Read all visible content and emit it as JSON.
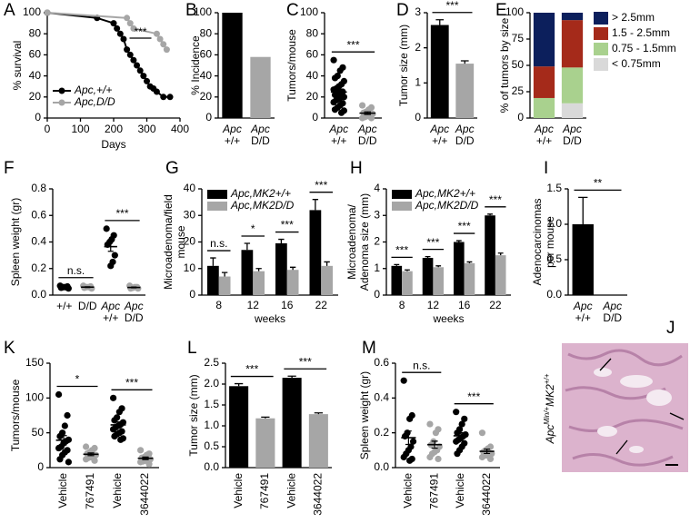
{
  "chart_data": [
    {
      "panel": "A",
      "type": "line",
      "ylabel": "% survival",
      "xlabel": "Days",
      "xlim": [
        0,
        400
      ],
      "xticks": [
        0,
        100,
        200,
        300,
        400
      ],
      "ylim": [
        0,
        100
      ],
      "yticks": [
        0,
        20,
        40,
        60,
        80,
        100
      ],
      "legend": "lower left",
      "series": [
        {
          "name": "Apc,+/+",
          "color": "#000000",
          "x": [
            0,
            150,
            200,
            210,
            220,
            230,
            240,
            250,
            260,
            270,
            280,
            290,
            300,
            310,
            320,
            330,
            350,
            370
          ],
          "y": [
            100,
            95,
            90,
            85,
            80,
            75,
            65,
            60,
            55,
            50,
            45,
            40,
            35,
            30,
            28,
            25,
            20,
            20
          ]
        },
        {
          "name": "Apc,D/D",
          "color": "#a6a6a6",
          "x": [
            0,
            240,
            250,
            260,
            330,
            340,
            350,
            360
          ],
          "y": [
            100,
            95,
            90,
            85,
            80,
            75,
            70,
            65
          ]
        }
      ],
      "annotations": [
        {
          "text": "***"
        }
      ]
    },
    {
      "panel": "B",
      "type": "bar",
      "ylabel": "% Incidence",
      "ylim": [
        0,
        100
      ],
      "yticks": [
        0,
        20,
        40,
        60,
        80,
        100
      ],
      "categories": [
        [
          "Apc",
          "+/+"
        ],
        [
          "Apc",
          "D/D"
        ]
      ],
      "values": [
        100,
        58
      ],
      "colors": [
        "#000000",
        "#a6a6a6"
      ]
    },
    {
      "panel": "C",
      "type": "strip",
      "ylabel": "Tumors/mouse",
      "ylim": [
        0,
        100
      ],
      "yticks": [
        0,
        20,
        40,
        60,
        80,
        100
      ],
      "categories": [
        [
          "Apc",
          "+/+"
        ],
        [
          "Apc",
          "D/D"
        ]
      ],
      "groups": [
        {
          "color": "#000000",
          "points": [
            55,
            48,
            45,
            40,
            38,
            35,
            32,
            30,
            28,
            27,
            25,
            24,
            22,
            22,
            20,
            20,
            18,
            17,
            15,
            14,
            12,
            10,
            8,
            7,
            5
          ]
        },
        {
          "color": "#a6a6a6",
          "points": [
            12,
            10,
            8,
            6,
            5,
            4,
            3,
            2,
            1,
            0,
            0
          ]
        }
      ],
      "annotations": [
        {
          "text": "***",
          "between": [
            0,
            1
          ]
        }
      ]
    },
    {
      "panel": "D",
      "type": "bar",
      "ylabel": "Tumor size (mm)",
      "ylim": [
        0,
        3
      ],
      "yticks": [
        0,
        1,
        2,
        3
      ],
      "categories": [
        [
          "Apc",
          "+/+"
        ],
        [
          "Apc",
          "D/D"
        ]
      ],
      "values": [
        2.65,
        1.55
      ],
      "errors": [
        0.15,
        0.08
      ],
      "colors": [
        "#000000",
        "#a6a6a6"
      ],
      "annotations": [
        {
          "text": "***",
          "between": [
            0,
            1
          ]
        }
      ]
    },
    {
      "panel": "E",
      "type": "stacked-bar",
      "ylabel": "% of tumors by size",
      "ylim": [
        0,
        100
      ],
      "yticks": [
        0,
        25,
        50,
        75,
        100
      ],
      "categories": [
        [
          "Apc",
          "+/+"
        ],
        [
          "Apc",
          "D/D"
        ]
      ],
      "legend": "right",
      "series": [
        {
          "name": "< 0.75mm",
          "color": "#d9d9d9",
          "values": [
            0,
            14
          ]
        },
        {
          "name": "0.75 - 1.5mm",
          "color": "#a9d18e",
          "values": [
            19,
            34
          ]
        },
        {
          "name": "1.5 - 2.5mm",
          "color": "#a52a1a",
          "values": [
            30,
            45
          ]
        },
        {
          "name": "> 2.5mm",
          "color": "#0c1f5c",
          "values": [
            51,
            7
          ]
        }
      ]
    },
    {
      "panel": "F",
      "type": "strip",
      "ylabel": "Spleen weight (gr)",
      "ylim": [
        0,
        0.8
      ],
      "yticks": [
        {
          "value": 0,
          "label": "0.0"
        },
        0.2,
        0.4,
        0.6,
        0.8
      ],
      "categories": [
        [
          "+/+"
        ],
        [
          "D/D"
        ],
        [
          "Apc",
          "+/+"
        ],
        [
          "Apc",
          "D/D"
        ]
      ],
      "groups": [
        {
          "color": "#000000",
          "points": [
            0.07,
            0.065,
            0.06,
            0.06,
            0.055,
            0.05
          ]
        },
        {
          "color": "#a6a6a6",
          "points": [
            0.07,
            0.065,
            0.06,
            0.06,
            0.055,
            0.05
          ]
        },
        {
          "color": "#000000",
          "points": [
            0.5,
            0.45,
            0.42,
            0.4,
            0.38,
            0.3,
            0.25,
            0.22
          ]
        },
        {
          "color": "#a6a6a6",
          "points": [
            0.07,
            0.06,
            0.06,
            0.055,
            0.05,
            0.05
          ]
        }
      ],
      "annotations": [
        {
          "text": "n.s.",
          "between": [
            0,
            1
          ]
        },
        {
          "text": "***",
          "between": [
            2,
            3
          ]
        }
      ]
    },
    {
      "panel": "G",
      "type": "grouped-bar",
      "ylabel": [
        "Microadenoma/field",
        "mouse"
      ],
      "xlabel": "weeks",
      "ylim": [
        0,
        40
      ],
      "yticks": [
        0,
        10,
        20,
        30,
        40
      ],
      "categories": [
        "8",
        "12",
        "16",
        "22"
      ],
      "legend": "upper left",
      "series": [
        {
          "name": "Apc,MK2+/+",
          "color": "#000000",
          "values": [
            11,
            17,
            19.5,
            32
          ],
          "errors": [
            3,
            2.5,
            1.5,
            4
          ]
        },
        {
          "name": "Apc,MK2D/D",
          "color": "#a6a6a6",
          "values": [
            7,
            9,
            9.5,
            11
          ],
          "errors": [
            1.5,
            1,
            1,
            1.5
          ]
        }
      ],
      "annotations": [
        {
          "text": "n.s.",
          "category": 0
        },
        {
          "text": "*",
          "category": 1
        },
        {
          "text": "***",
          "category": 2
        },
        {
          "text": "***",
          "category": 3
        }
      ]
    },
    {
      "panel": "H",
      "type": "grouped-bar",
      "ylabel": [
        "Microadenoma/",
        "Adenoma size (mm)"
      ],
      "xlabel": "weeks",
      "ylim": [
        0,
        4
      ],
      "yticks": [
        0,
        1,
        2,
        3,
        4
      ],
      "categories": [
        "8",
        "12",
        "16",
        "22"
      ],
      "legend": "upper left",
      "series": [
        {
          "name": "Apc,MK2+/+",
          "color": "#000000",
          "values": [
            1.1,
            1.4,
            2.0,
            3.0
          ],
          "errors": [
            0.05,
            0.05,
            0.05,
            0.05
          ]
        },
        {
          "name": "Apc,MK2D/D",
          "color": "#a6a6a6",
          "values": [
            0.9,
            1.05,
            1.2,
            1.5
          ],
          "errors": [
            0.05,
            0.05,
            0.05,
            0.08
          ]
        }
      ],
      "annotations": [
        {
          "text": "***",
          "category": 0
        },
        {
          "text": "***",
          "category": 1
        },
        {
          "text": "***",
          "category": 2
        },
        {
          "text": "***",
          "category": 3
        }
      ]
    },
    {
      "panel": "I",
      "type": "bar",
      "ylabel": [
        "Adenocarcinomas",
        "per mouse"
      ],
      "ylim": [
        0,
        1.5
      ],
      "yticks": [
        {
          "value": 0,
          "label": "0.0"
        },
        0.5,
        {
          "value": 1,
          "label": "1.0"
        },
        1.5
      ],
      "categories": [
        [
          "Apc",
          "+/+"
        ],
        [
          "Apc",
          "D/D"
        ]
      ],
      "values": [
        1,
        0
      ],
      "errors": [
        0.38,
        0
      ],
      "colors": [
        "#000000",
        "#a6a6a6"
      ],
      "annotations": [
        {
          "text": "**",
          "between": [
            0,
            1
          ]
        }
      ]
    },
    {
      "panel": "K",
      "type": "strip",
      "ylabel": "Tumors/mouse",
      "ylim": [
        0,
        150
      ],
      "yticks": [
        0,
        50,
        100,
        150
      ],
      "categories": [
        "Vehicle",
        "767491",
        "Vehicle",
        "3644022"
      ],
      "rotate_labels": true,
      "groups": [
        {
          "color": "#000000",
          "points": [
            105,
            75,
            60,
            50,
            45,
            40,
            38,
            35,
            30,
            28,
            25,
            22,
            18,
            12,
            8
          ]
        },
        {
          "color": "#a6a6a6",
          "points": [
            30,
            28,
            25,
            22,
            20,
            18,
            17,
            15,
            14,
            12,
            10
          ]
        },
        {
          "color": "#000000",
          "points": [
            100,
            85,
            80,
            72,
            68,
            65,
            62,
            60,
            58,
            55,
            52,
            50,
            48,
            45,
            42,
            40
          ]
        },
        {
          "color": "#a6a6a6",
          "points": [
            25,
            20,
            18,
            15,
            14,
            12,
            11,
            10,
            9,
            8,
            5
          ]
        }
      ],
      "annotations": [
        {
          "text": "*",
          "between": [
            0,
            1
          ]
        },
        {
          "text": "***",
          "between": [
            2,
            3
          ]
        }
      ]
    },
    {
      "panel": "L",
      "type": "bar",
      "ylabel": "Tumor size (mm)",
      "ylim": [
        0,
        2.5
      ],
      "yticks": [
        {
          "value": 0,
          "label": "0.0"
        },
        0.5,
        {
          "value": 1,
          "label": "1.0"
        },
        1.5,
        {
          "value": 2,
          "label": "2.0"
        },
        2.5
      ],
      "categories": [
        "Vehicle",
        "767491",
        "Vehicle",
        "3644022"
      ],
      "rotate_labels": true,
      "values": [
        1.95,
        1.18,
        2.15,
        1.28
      ],
      "errors": [
        0.06,
        0.03,
        0.04,
        0.03
      ],
      "colors": [
        "#000000",
        "#a6a6a6",
        "#000000",
        "#a6a6a6"
      ],
      "annotations": [
        {
          "text": "***",
          "between": [
            0,
            1
          ]
        },
        {
          "text": "***",
          "between": [
            2,
            3
          ]
        }
      ]
    },
    {
      "panel": "M",
      "type": "strip",
      "ylabel": "Spleen weight (gr)",
      "ylim": [
        0,
        0.6
      ],
      "yticks": [
        {
          "value": 0,
          "label": "0.0"
        },
        0.2,
        0.4,
        0.6
      ],
      "categories": [
        "Vehicle",
        "767491",
        "Vehicle",
        "3644022"
      ],
      "rotate_labels": true,
      "groups": [
        {
          "color": "#000000",
          "points": [
            0.5,
            0.3,
            0.28,
            0.2,
            0.18,
            0.15,
            0.12,
            0.1,
            0.08,
            0.06,
            0.05,
            0.04
          ]
        },
        {
          "color": "#a6a6a6",
          "points": [
            0.25,
            0.22,
            0.2,
            0.15,
            0.13,
            0.12,
            0.1,
            0.09,
            0.08,
            0.06,
            0.05
          ]
        },
        {
          "color": "#000000",
          "points": [
            0.32,
            0.28,
            0.25,
            0.22,
            0.2,
            0.19,
            0.18,
            0.17,
            0.16,
            0.15,
            0.14,
            0.12,
            0.1,
            0.08
          ]
        },
        {
          "color": "#a6a6a6",
          "points": [
            0.2,
            0.12,
            0.11,
            0.1,
            0.09,
            0.08,
            0.08,
            0.07,
            0.07,
            0.06,
            0.05
          ]
        }
      ],
      "annotations": [
        {
          "text": "n.s.",
          "between": [
            0,
            1
          ]
        },
        {
          "text": "***",
          "between": [
            2,
            3
          ]
        }
      ]
    },
    {
      "panel": "J",
      "type": "image",
      "label": [
        "Apc",
        "Min/+",
        "MK2",
        "+/+"
      ]
    }
  ]
}
